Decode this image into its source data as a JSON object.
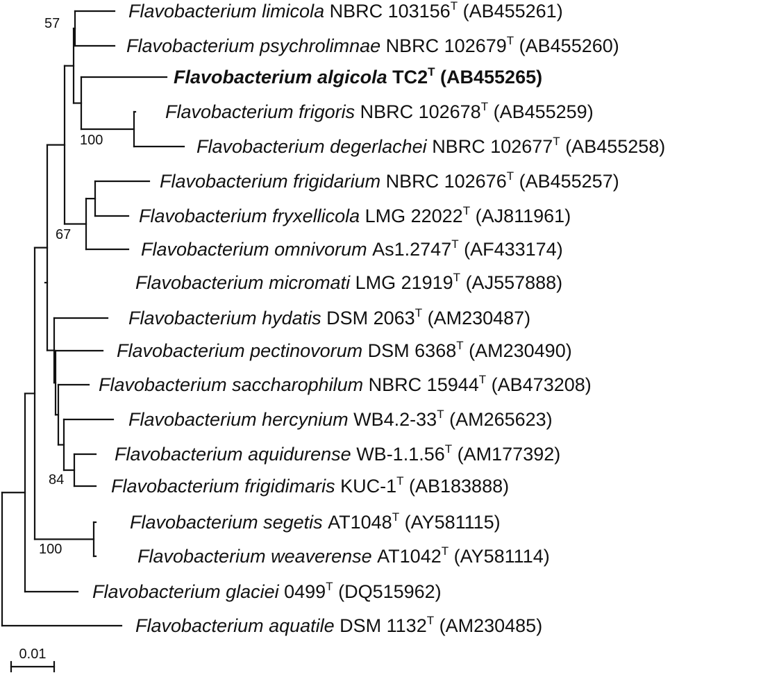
{
  "leaves": [
    {
      "species": "Flavobacterium limicola",
      "strain": "NBRC 103156",
      "sup": "T",
      "accession": "(AB455261)",
      "bold": false
    },
    {
      "species": "Flavobacterium psychrolimnae",
      "strain": "NBRC 102679",
      "sup": "T",
      "accession": "(AB455260)",
      "bold": false
    },
    {
      "species": "Flavobacterium algicola",
      "strain": "TC2",
      "sup": "T",
      "accession": "(AB455265)",
      "bold": true
    },
    {
      "species": "Flavobacterium frigoris",
      "strain": "NBRC 102678",
      "sup": "T",
      "accession": "(AB455259)",
      "bold": false
    },
    {
      "species": "Flavobacterium degerlachei",
      "strain": "NBRC 102677",
      "sup": "T",
      "accession": "(AB455258)",
      "bold": false
    },
    {
      "species": "Flavobacterium frigidarium",
      "strain": "NBRC 102676",
      "sup": "T",
      "accession": "(AB455257)",
      "bold": false
    },
    {
      "species": "Flavobacterium fryxellicola",
      "strain": "LMG 22022",
      "sup": "T",
      "accession": "(AJ811961)",
      "bold": false
    },
    {
      "species": "Flavobacterium omnivorum",
      "strain": "As1.2747",
      "sup": "T",
      "accession": "(AF433174)",
      "bold": false
    },
    {
      "species": "Flavobacterium micromati",
      "strain": "LMG 21919",
      "sup": "T",
      "accession": "(AJ557888)",
      "bold": false
    },
    {
      "species": "Flavobacterium hydatis",
      "strain": "DSM 2063",
      "sup": "T",
      "accession": "(AM230487)",
      "bold": false
    },
    {
      "species": "Flavobacterium pectinovorum",
      "strain": "DSM 6368",
      "sup": "T",
      "accession": "(AM230490)",
      "bold": false
    },
    {
      "species": "Flavobacterium saccharophilum",
      "strain": "NBRC 15944",
      "sup": "T",
      "accession": "(AB473208)",
      "bold": false
    },
    {
      "species": "Flavobacterium hercynium",
      "strain": "WB4.2-33",
      "sup": "T",
      "accession": "(AM265623)",
      "bold": false
    },
    {
      "species": "Flavobacterium aquidurense",
      "strain": "WB-1.1.56",
      "sup": "T",
      "accession": "(AM177392)",
      "bold": false
    },
    {
      "species": "Flavobacterium frigidimaris",
      "strain": "KUC-1",
      "sup": "T",
      "accession": "(AB183888)",
      "bold": false
    },
    {
      "species": "Flavobacterium segetis",
      "strain": "AT1048",
      "sup": "T",
      "accession": "(AY581115)",
      "bold": false
    },
    {
      "species": "Flavobacterium weaverense",
      "strain": "AT1042",
      "sup": "T",
      "accession": "(AY581114)",
      "bold": false
    },
    {
      "species": "Flavobacterium glaciei",
      "strain": "0499",
      "sup": "T",
      "accession": "(DQ515962)",
      "bold": false
    },
    {
      "species": "Flavobacterium aquatile",
      "strain": "DSM 1132",
      "sup": "T",
      "accession": "(AM230485)",
      "bold": false
    }
  ],
  "support_values": [
    {
      "label": "57"
    },
    {
      "label": "100"
    },
    {
      "label": "67"
    },
    {
      "label": "84"
    },
    {
      "label": "100"
    }
  ],
  "scale_bar": {
    "label": "0.01"
  }
}
